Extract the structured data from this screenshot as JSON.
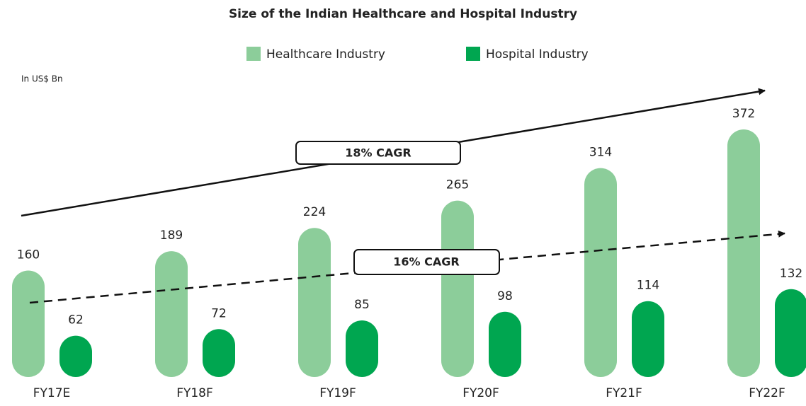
{
  "chart_data": {
    "type": "bar",
    "title": "Size of the Indian Healthcare and Hospital Industry",
    "unit_label": "In US$ Bn",
    "categories": [
      "FY17E",
      "FY18F",
      "FY19F",
      "FY20F",
      "FY21F",
      "FY22F"
    ],
    "series": [
      {
        "name": "Healthcare Industry",
        "color": "#8ccd9a",
        "values": [
          160,
          189,
          224,
          265,
          314,
          372
        ]
      },
      {
        "name": "Hospital Industry",
        "color": "#00a650",
        "values": [
          62,
          72,
          85,
          98,
          114,
          132
        ]
      }
    ],
    "annotations": [
      "18% CAGR",
      "16% CAGR"
    ]
  }
}
